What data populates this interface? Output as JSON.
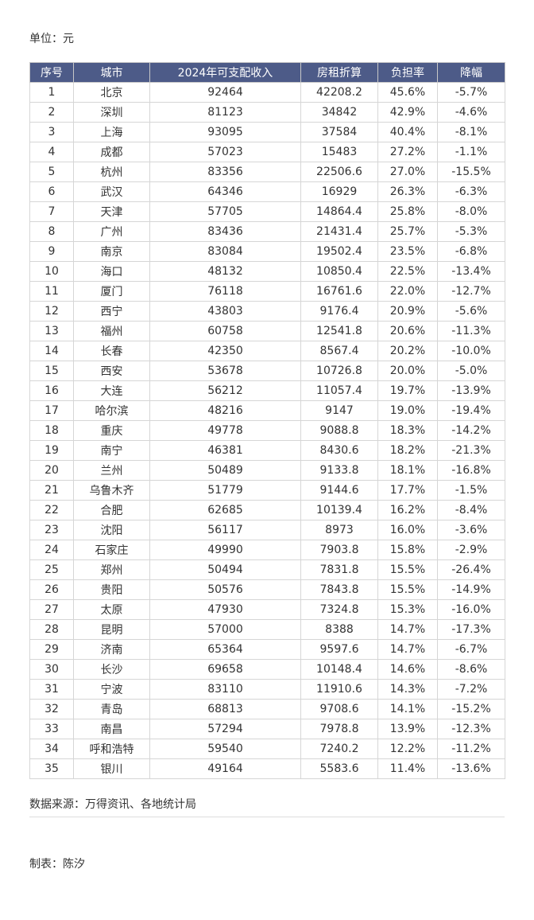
{
  "unit": "单位：元",
  "table": {
    "headers": [
      "序号",
      "城市",
      "2024年可支配收入",
      "房租折算",
      "负担率",
      "降幅"
    ],
    "rows": [
      [
        "1",
        "北京",
        "92464",
        "42208.2",
        "45.6%",
        "-5.7%"
      ],
      [
        "2",
        "深圳",
        "81123",
        "34842",
        "42.9%",
        "-4.6%"
      ],
      [
        "3",
        "上海",
        "93095",
        "37584",
        "40.4%",
        "-8.1%"
      ],
      [
        "4",
        "成都",
        "57023",
        "15483",
        "27.2%",
        "-1.1%"
      ],
      [
        "5",
        "杭州",
        "83356",
        "22506.6",
        "27.0%",
        "-15.5%"
      ],
      [
        "6",
        "武汉",
        "64346",
        "16929",
        "26.3%",
        "-6.3%"
      ],
      [
        "7",
        "天津",
        "57705",
        "14864.4",
        "25.8%",
        "-8.0%"
      ],
      [
        "8",
        "广州",
        "83436",
        "21431.4",
        "25.7%",
        "-5.3%"
      ],
      [
        "9",
        "南京",
        "83084",
        "19502.4",
        "23.5%",
        "-6.8%"
      ],
      [
        "10",
        "海口",
        "48132",
        "10850.4",
        "22.5%",
        "-13.4%"
      ],
      [
        "11",
        "厦门",
        "76118",
        "16761.6",
        "22.0%",
        "-12.7%"
      ],
      [
        "12",
        "西宁",
        "43803",
        "9176.4",
        "20.9%",
        "-5.6%"
      ],
      [
        "13",
        "福州",
        "60758",
        "12541.8",
        "20.6%",
        "-11.3%"
      ],
      [
        "14",
        "长春",
        "42350",
        "8567.4",
        "20.2%",
        "-10.0%"
      ],
      [
        "15",
        "西安",
        "53678",
        "10726.8",
        "20.0%",
        "-5.0%"
      ],
      [
        "16",
        "大连",
        "56212",
        "11057.4",
        "19.7%",
        "-13.9%"
      ],
      [
        "17",
        "哈尔滨",
        "48216",
        "9147",
        "19.0%",
        "-19.4%"
      ],
      [
        "18",
        "重庆",
        "49778",
        "9088.8",
        "18.3%",
        "-14.2%"
      ],
      [
        "19",
        "南宁",
        "46381",
        "8430.6",
        "18.2%",
        "-21.3%"
      ],
      [
        "20",
        "兰州",
        "50489",
        "9133.8",
        "18.1%",
        "-16.8%"
      ],
      [
        "21",
        "乌鲁木齐",
        "51779",
        "9144.6",
        "17.7%",
        "-1.5%"
      ],
      [
        "22",
        "合肥",
        "62685",
        "10139.4",
        "16.2%",
        "-8.4%"
      ],
      [
        "23",
        "沈阳",
        "56117",
        "8973",
        "16.0%",
        "-3.6%"
      ],
      [
        "24",
        "石家庄",
        "49990",
        "7903.8",
        "15.8%",
        "-2.9%"
      ],
      [
        "25",
        "郑州",
        "50494",
        "7831.8",
        "15.5%",
        "-26.4%"
      ],
      [
        "26",
        "贵阳",
        "50576",
        "7843.8",
        "15.5%",
        "-14.9%"
      ],
      [
        "27",
        "太原",
        "47930",
        "7324.8",
        "15.3%",
        "-16.0%"
      ],
      [
        "28",
        "昆明",
        "57000",
        "8388",
        "14.7%",
        "-17.3%"
      ],
      [
        "29",
        "济南",
        "65364",
        "9597.6",
        "14.7%",
        "-6.7%"
      ],
      [
        "30",
        "长沙",
        "69658",
        "10148.4",
        "14.6%",
        "-8.6%"
      ],
      [
        "31",
        "宁波",
        "83110",
        "11910.6",
        "14.3%",
        "-7.2%"
      ],
      [
        "32",
        "青岛",
        "68813",
        "9708.6",
        "14.1%",
        "-15.2%"
      ],
      [
        "33",
        "南昌",
        "57294",
        "7978.8",
        "13.9%",
        "-12.3%"
      ],
      [
        "34",
        "呼和浩特",
        "59540",
        "7240.2",
        "12.2%",
        "-11.2%"
      ],
      [
        "35",
        "银川",
        "49164",
        "5583.6",
        "11.4%",
        "-13.6%"
      ]
    ]
  },
  "source": "数据来源：万得资讯、各地统计局",
  "author": "制表：陈汐"
}
